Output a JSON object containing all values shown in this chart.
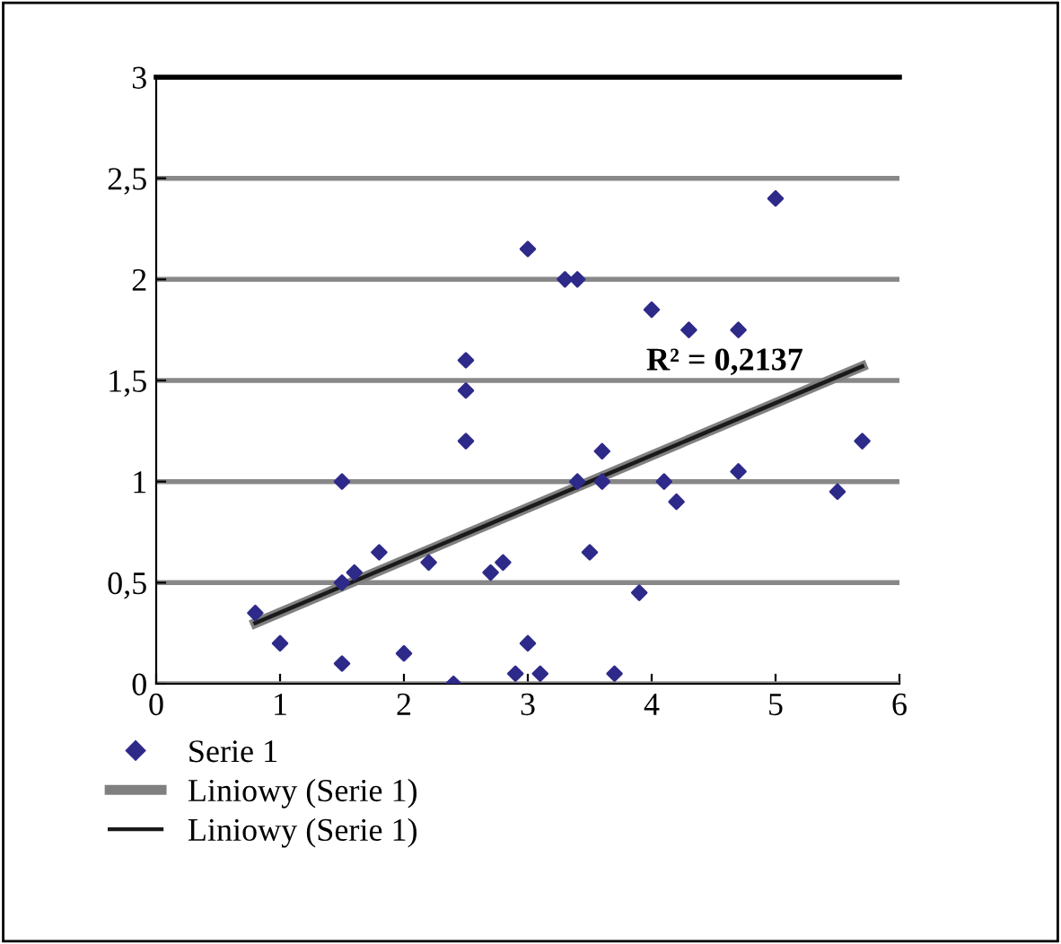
{
  "chart_data": {
    "type": "scatter",
    "xlim": [
      0,
      6
    ],
    "ylim": [
      0,
      3
    ],
    "xticks": [
      0,
      1,
      2,
      3,
      4,
      5,
      6
    ],
    "yticks": [
      0,
      {
        "value": 0.5,
        "label": "0,5"
      },
      1,
      {
        "value": 1.5,
        "label": "1,5"
      },
      2,
      {
        "value": 2.5,
        "label": "2,5"
      },
      3
    ],
    "grid": "y",
    "legend": "bottom",
    "series": [
      {
        "name": "Serie 1",
        "color": "#2e2a8a",
        "marker": "diamond",
        "x": [
          0.8,
          1.0,
          1.5,
          1.5,
          1.5,
          1.6,
          1.8,
          2.0,
          2.2,
          2.4,
          2.5,
          2.5,
          2.5,
          2.7,
          2.8,
          2.9,
          3.0,
          3.0,
          3.1,
          3.3,
          3.4,
          3.4,
          3.5,
          3.6,
          3.6,
          3.7,
          3.9,
          4.0,
          4.1,
          4.2,
          4.3,
          4.7,
          4.7,
          5.0,
          5.5,
          5.7
        ],
        "values": [
          0.35,
          0.2,
          1.0,
          0.1,
          0.5,
          0.55,
          0.65,
          0.15,
          0.6,
          0.0,
          1.6,
          1.45,
          1.2,
          0.55,
          0.6,
          0.05,
          2.15,
          0.2,
          0.05,
          2.0,
          2.0,
          1.0,
          0.65,
          1.15,
          1.0,
          0.05,
          0.45,
          1.85,
          1.0,
          0.9,
          1.75,
          1.75,
          1.05,
          2.4,
          0.95,
          1.2
        ]
      },
      {
        "name": "Liniowy (Serie 1)",
        "type": "line",
        "marker": "none",
        "color": "#808080",
        "x": [
          0.8,
          5.7
        ],
        "values": [
          0.3,
          1.57
        ]
      },
      {
        "name": "Liniowy (Serie 1)",
        "type": "line",
        "marker": "none",
        "color": "#1a1a1a",
        "x": [
          0.8,
          5.7
        ],
        "values": [
          0.3,
          1.57
        ]
      }
    ],
    "annotations": [
      "R² = 0,2137"
    ]
  }
}
